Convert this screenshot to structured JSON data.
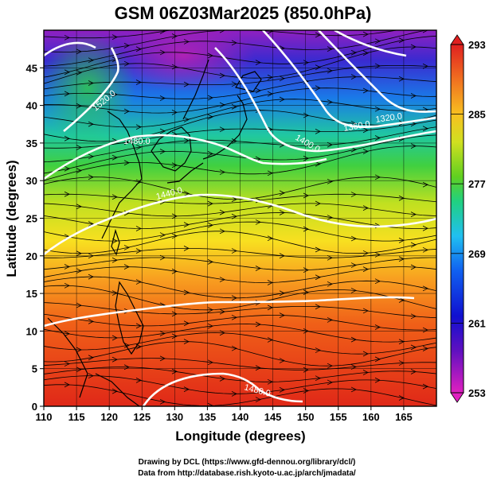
{
  "title": "GSM 06Z03Mar2025 (850.0hPa)",
  "x_axis": {
    "label": "Longitude (degrees)",
    "range": [
      110,
      170
    ],
    "ticks": [
      "110",
      "115",
      "120",
      "125",
      "130",
      "135",
      "140",
      "145",
      "150",
      "155",
      "160",
      "165"
    ]
  },
  "y_axis": {
    "label": "Latitude (degrees)",
    "range": [
      0,
      50
    ],
    "ticks": [
      "0",
      "5",
      "10",
      "15",
      "20",
      "25",
      "30",
      "35",
      "40",
      "45"
    ]
  },
  "colorbar": {
    "ticks": [
      "253",
      "261",
      "269",
      "277",
      "285",
      "293"
    ],
    "range": [
      253,
      293
    ],
    "colors": [
      "#d020d0",
      "#1010c0",
      "#0060f0",
      "#20c0f0",
      "#20d070",
      "#a0e020",
      "#f0f020",
      "#f8b020",
      "#f06020",
      "#e02020"
    ]
  },
  "contours": {
    "color": "#ffffff",
    "labels": [
      "1520.0",
      "1480.0",
      "1400.0",
      "1360.0",
      "1320.0",
      "1440.0",
      "1480.0"
    ]
  },
  "credits": [
    "Drawing by DCL (https://www.gfd-dennou.org/library/dcl/)",
    "Data from http://database.rish.kyoto-u.ac.jp/arch/jmadata/"
  ]
}
